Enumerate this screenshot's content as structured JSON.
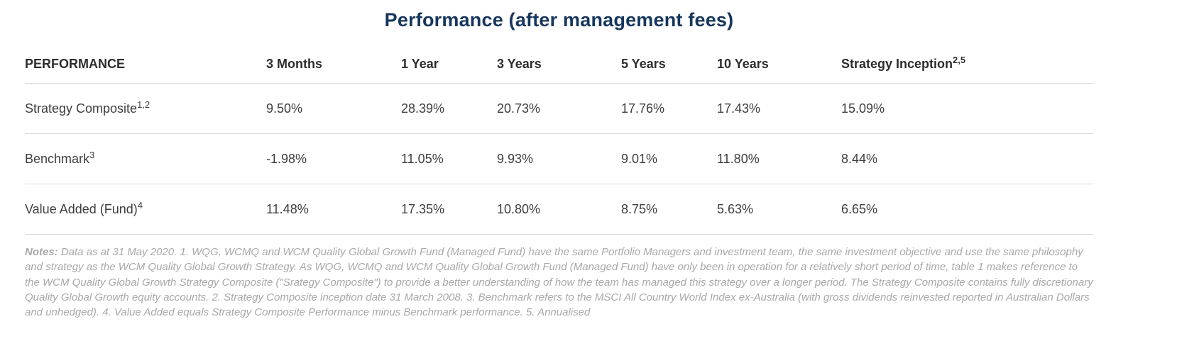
{
  "page_title": "Performance (after management fees)",
  "colors": {
    "title_navy": "#16365d",
    "header_text": "#2d2d2d",
    "cell_text": "#3e3e3e",
    "divider": "#d9d9d9",
    "notes_gray": "#a8a8a8"
  },
  "chart_data": {
    "type": "table",
    "title": "Performance (after management fees)",
    "header": {
      "row_label": "PERFORMANCE",
      "columns": [
        {
          "label": "3 Months",
          "sup": ""
        },
        {
          "label": "1 Year",
          "sup": ""
        },
        {
          "label": "3 Years",
          "sup": ""
        },
        {
          "label": "5 Years",
          "sup": ""
        },
        {
          "label": "10 Years",
          "sup": ""
        },
        {
          "label": "Strategy Inception",
          "sup": "2,5"
        }
      ]
    },
    "rows": [
      {
        "label": "Strategy Composite",
        "sup": "1,2",
        "values": [
          "9.50%",
          "28.39%",
          "20.73%",
          "17.76%",
          "17.43%",
          "15.09%"
        ]
      },
      {
        "label": "Benchmark",
        "sup": "3",
        "values": [
          "-1.98%",
          "11.05%",
          "9.93%",
          "9.01%",
          "11.80%",
          "8.44%"
        ]
      },
      {
        "label": "Value Added (Fund)",
        "sup": "4",
        "values": [
          "11.48%",
          "17.35%",
          "10.80%",
          "8.75%",
          "5.63%",
          "6.65%"
        ]
      }
    ]
  },
  "notes": {
    "label": "Notes:",
    "text": "Data as at 31 May 2020. 1. WQG, WCMQ and WCM Quality Global Growth Fund (Managed Fund) have the same Portfolio Managers and investment team, the same investment objective and use the same philosophy and strategy as the WCM Quality Global Growth Strategy. As WQG, WCMQ and WCM Quality Global Growth Fund (Managed Fund) have only been in operation for a relatively short period of time, table 1 makes reference to the WCM Quality Global Growth Strategy Composite (\"Srategy Composite\") to provide a better understanding of how the team has managed this strategy over a longer period. The Strategy Composite contains fully discretionary Quality Global Growth equity accounts. 2. Strategy Composite inception date 31 March 2008. 3. Benchmark refers to the MSCI All Country World Index ex-Australia (with gross dividends reinvested reported in Australian Dollars and unhedged). 4. Value Added equals Strategy Composite Performance minus Benchmark performance. 5. Annualised"
  }
}
